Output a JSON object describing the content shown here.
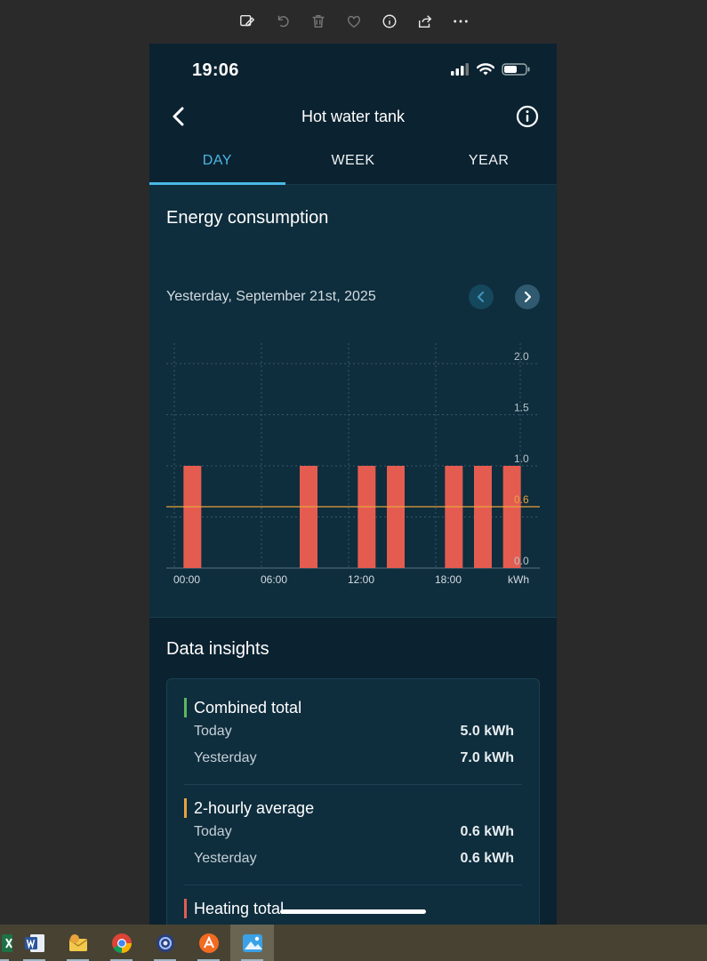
{
  "viewer_toolbar": {
    "icons": [
      "edit-image-icon",
      "rotate-icon",
      "delete-icon",
      "favorite-icon",
      "info-icon",
      "share-icon",
      "more-icon"
    ]
  },
  "phone": {
    "status": {
      "time": "19:06"
    },
    "header": {
      "title": "Hot water tank"
    },
    "tabs": [
      {
        "label": "DAY",
        "active": true
      },
      {
        "label": "WEEK",
        "active": false
      },
      {
        "label": "YEAR",
        "active": false
      }
    ],
    "energy": {
      "title": "Energy consumption",
      "date": "Yesterday, September 21st, 2025"
    },
    "insights": {
      "title": "Data insights",
      "groups": [
        {
          "title": "Combined total",
          "color": "#5cb85c",
          "rows": [
            {
              "label": "Today",
              "value": "5.0 kWh"
            },
            {
              "label": "Yesterday",
              "value": "7.0 kWh"
            }
          ]
        },
        {
          "title": "2-hourly average",
          "color": "#e8a33d",
          "rows": [
            {
              "label": "Today",
              "value": "0.6 kWh"
            },
            {
              "label": "Yesterday",
              "value": "0.6 kWh"
            }
          ]
        },
        {
          "title": "Heating total",
          "color": "#e45c50",
          "rows": []
        }
      ]
    }
  },
  "chart_data": {
    "type": "bar",
    "x_tick_labels": [
      "00:00",
      "06:00",
      "12:00",
      "18:00"
    ],
    "unit_label": "kWh",
    "y_ticks": [
      0.0,
      1.0,
      1.5,
      2.0
    ],
    "y_tick_labels": [
      "0.0",
      "1.0",
      "1.5",
      "2.0"
    ],
    "ylim": [
      0,
      2.2
    ],
    "x_hours": [
      1,
      9,
      13,
      15,
      19,
      21,
      23
    ],
    "values": [
      1.0,
      1.0,
      1.0,
      1.0,
      1.0,
      1.0,
      1.0
    ],
    "bar_color": "#e45c50",
    "average": {
      "value": 0.6,
      "label": "0.6",
      "color": "#e8a33d"
    }
  },
  "taskbar": {
    "apps": [
      {
        "name": "excel-icon",
        "active": false
      },
      {
        "name": "word-icon",
        "active": false
      },
      {
        "name": "outlook-icon",
        "active": false
      },
      {
        "name": "chrome-icon",
        "active": false
      },
      {
        "name": "app-icon",
        "active": false
      },
      {
        "name": "avast-icon",
        "active": false
      },
      {
        "name": "photos-icon",
        "active": true
      }
    ]
  }
}
